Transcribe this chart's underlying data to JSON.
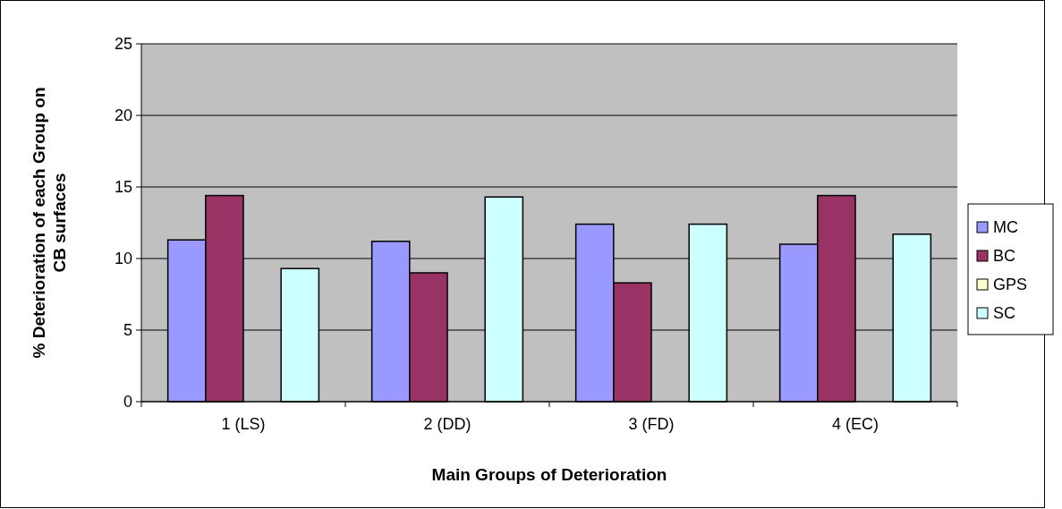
{
  "chart_data": {
    "type": "bar",
    "xlabel": "Main Groups of Deterioration",
    "ylabel": "% Deterioration of each Group on CB surfaces",
    "categories": [
      "1 (LS)",
      "2 (DD)",
      "3 (FD)",
      "4 (EC)"
    ],
    "series": [
      {
        "name": "MC",
        "color": "#9999ff",
        "values": [
          11.3,
          11.2,
          12.4,
          11.0
        ]
      },
      {
        "name": "BC",
        "color": "#993366",
        "values": [
          14.4,
          9.0,
          8.3,
          14.4
        ]
      },
      {
        "name": "GPS",
        "color": "#ffffcc",
        "values": [
          0,
          0,
          0,
          0
        ]
      },
      {
        "name": "SC",
        "color": "#ccffff",
        "values": [
          9.3,
          14.3,
          12.4,
          11.7
        ]
      }
    ],
    "ylim": [
      0,
      25
    ],
    "yticks": [
      0,
      5,
      10,
      15,
      20,
      25
    ],
    "grid": "y",
    "legend": "right"
  }
}
